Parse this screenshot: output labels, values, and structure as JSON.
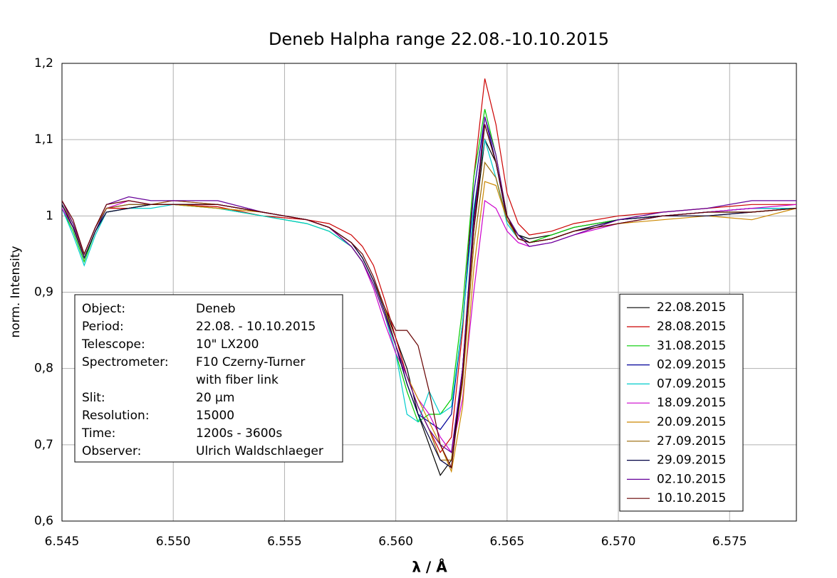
{
  "chart_data": {
    "type": "line",
    "title": "Deneb Halpha range 22.08.-10.10.2015",
    "x_label": "λ / Å",
    "y_label": "norm. Intensity",
    "xlim": [
      6.545,
      6.578
    ],
    "ylim": [
      0.6,
      1.2
    ],
    "xticks": [
      6.545,
      {
        "value": 6.55,
        "label": "6.550"
      },
      6.555,
      {
        "value": 6.56,
        "label": "6.560"
      },
      6.565,
      {
        "value": 6.57,
        "label": "6.570"
      },
      6.575
    ],
    "yticks": [
      {
        "value": 0.6,
        "label": "0,6"
      },
      {
        "value": 0.7,
        "label": "0,7"
      },
      {
        "value": 0.8,
        "label": "0,8"
      },
      {
        "value": 0.9,
        "label": "0,9"
      },
      1,
      {
        "value": 1.1,
        "label": "1,1"
      },
      {
        "value": 1.2,
        "label": "1,2"
      }
    ],
    "grid": true,
    "legend": "lower right",
    "x": [
      6.545,
      6.5455,
      6.546,
      6.5465,
      6.547,
      6.548,
      6.549,
      6.55,
      6.552,
      6.554,
      6.556,
      6.557,
      6.558,
      6.5585,
      6.559,
      6.5595,
      6.56,
      6.5605,
      6.561,
      6.5615,
      6.562,
      6.5625,
      6.563,
      6.5635,
      6.564,
      6.5645,
      6.565,
      6.5655,
      6.566,
      6.567,
      6.568,
      6.57,
      6.572,
      6.574,
      6.576,
      6.578
    ],
    "series": [
      {
        "name": "22.08.2015",
        "color": "#000000",
        "values": [
          1.015,
          0.99,
          0.945,
          0.98,
          1.005,
          1.01,
          1.015,
          1.015,
          1.015,
          1.005,
          0.995,
          0.985,
          0.965,
          0.945,
          0.915,
          0.88,
          0.84,
          0.8,
          0.74,
          0.7,
          0.66,
          0.68,
          0.8,
          0.98,
          1.1,
          1.07,
          0.995,
          0.975,
          0.97,
          0.975,
          0.985,
          0.995,
          1.0,
          1.005,
          1.01,
          1.01
        ]
      },
      {
        "name": "28.08.2015",
        "color": "#cc0000",
        "values": [
          1.01,
          0.985,
          0.95,
          0.985,
          1.01,
          1.01,
          1.015,
          1.015,
          1.012,
          1.0,
          0.995,
          0.99,
          0.975,
          0.96,
          0.935,
          0.89,
          0.84,
          0.79,
          0.75,
          0.72,
          0.69,
          0.71,
          0.85,
          1.05,
          1.18,
          1.12,
          1.03,
          0.99,
          0.975,
          0.98,
          0.99,
          1.0,
          1.005,
          1.01,
          1.015,
          1.015
        ]
      },
      {
        "name": "31.08.2015",
        "color": "#00cc00",
        "values": [
          1.01,
          0.98,
          0.94,
          0.98,
          1.005,
          1.01,
          1.015,
          1.015,
          1.01,
          1.0,
          0.99,
          0.98,
          0.96,
          0.94,
          0.91,
          0.87,
          0.82,
          0.77,
          0.73,
          0.74,
          0.74,
          0.76,
          0.88,
          1.05,
          1.14,
          1.08,
          1.0,
          0.975,
          0.965,
          0.975,
          0.985,
          0.995,
          1.0,
          1.005,
          1.005,
          1.01
        ]
      },
      {
        "name": "02.09.2015",
        "color": "#000099",
        "values": [
          1.015,
          0.985,
          0.945,
          0.98,
          1.01,
          1.015,
          1.015,
          1.015,
          1.015,
          1.005,
          0.995,
          0.985,
          0.965,
          0.945,
          0.915,
          0.88,
          0.83,
          0.78,
          0.74,
          0.73,
          0.72,
          0.74,
          0.86,
          1.03,
          1.13,
          1.07,
          0.995,
          0.97,
          0.965,
          0.97,
          0.98,
          0.995,
          1.0,
          1.005,
          1.01,
          1.01
        ]
      },
      {
        "name": "07.09.2015",
        "color": "#00cccc",
        "values": [
          1.01,
          0.975,
          0.935,
          0.975,
          1.005,
          1.01,
          1.01,
          1.015,
          1.01,
          1.0,
          0.99,
          0.98,
          0.96,
          0.94,
          0.91,
          0.87,
          0.82,
          0.74,
          0.73,
          0.77,
          0.74,
          0.75,
          0.86,
          1.01,
          1.1,
          1.05,
          0.99,
          0.97,
          0.965,
          0.97,
          0.98,
          0.99,
          1.0,
          1.005,
          1.01,
          1.01
        ]
      },
      {
        "name": "18.09.2015",
        "color": "#cc00cc",
        "values": [
          1.01,
          0.985,
          0.95,
          0.985,
          1.01,
          1.02,
          1.015,
          1.02,
          1.015,
          1.005,
          0.995,
          0.985,
          0.96,
          0.94,
          0.905,
          0.86,
          0.82,
          0.79,
          0.76,
          0.74,
          0.71,
          0.69,
          0.76,
          0.9,
          1.02,
          1.01,
          0.98,
          0.965,
          0.96,
          0.965,
          0.975,
          0.99,
          1.0,
          1.005,
          1.01,
          1.015
        ]
      },
      {
        "name": "20.09.2015",
        "color": "#cc8800",
        "values": [
          1.015,
          0.99,
          0.945,
          0.98,
          1.005,
          1.01,
          1.015,
          1.015,
          1.01,
          1.005,
          0.995,
          0.985,
          0.965,
          0.945,
          0.915,
          0.88,
          0.83,
          0.79,
          0.76,
          0.73,
          0.7,
          0.665,
          0.75,
          0.93,
          1.045,
          1.04,
          0.995,
          0.97,
          0.965,
          0.97,
          0.98,
          0.99,
          0.995,
          1.0,
          0.995,
          1.01
        ]
      },
      {
        "name": "27.09.2015",
        "color": "#996600",
        "values": [
          1.02,
          0.99,
          0.95,
          0.985,
          1.01,
          1.015,
          1.015,
          1.02,
          1.015,
          1.005,
          0.995,
          0.985,
          0.96,
          0.94,
          0.91,
          0.87,
          0.83,
          0.79,
          0.75,
          0.72,
          0.68,
          0.68,
          0.78,
          0.96,
          1.07,
          1.05,
          0.995,
          0.97,
          0.965,
          0.97,
          0.98,
          0.995,
          1.0,
          1.0,
          1.005,
          1.01
        ]
      },
      {
        "name": "29.09.2015",
        "color": "#000044",
        "values": [
          1.015,
          0.985,
          0.945,
          0.98,
          1.005,
          1.01,
          1.015,
          1.015,
          1.015,
          1.005,
          0.995,
          0.985,
          0.965,
          0.945,
          0.915,
          0.875,
          0.83,
          0.78,
          0.74,
          0.71,
          0.68,
          0.67,
          0.8,
          1.0,
          1.12,
          1.07,
          1.0,
          0.975,
          0.965,
          0.97,
          0.98,
          0.995,
          1.0,
          1.0,
          1.005,
          1.01
        ]
      },
      {
        "name": "02.10.2015",
        "color": "#660099",
        "values": [
          1.02,
          0.99,
          0.95,
          0.985,
          1.015,
          1.025,
          1.02,
          1.02,
          1.02,
          1.005,
          0.995,
          0.985,
          0.96,
          0.94,
          0.91,
          0.87,
          0.83,
          0.79,
          0.75,
          0.72,
          0.7,
          0.69,
          0.8,
          0.99,
          1.13,
          1.08,
          1.0,
          0.975,
          0.96,
          0.965,
          0.975,
          0.995,
          1.005,
          1.01,
          1.02,
          1.02
        ]
      },
      {
        "name": "10.10.2015",
        "color": "#660000",
        "values": [
          1.02,
          0.995,
          0.95,
          0.985,
          1.015,
          1.02,
          1.015,
          1.015,
          1.015,
          1.005,
          0.995,
          0.985,
          0.965,
          0.95,
          0.92,
          0.88,
          0.85,
          0.85,
          0.83,
          0.77,
          0.7,
          0.67,
          0.79,
          0.98,
          1.12,
          1.07,
          1.0,
          0.97,
          0.965,
          0.97,
          0.98,
          0.99,
          1.0,
          1.005,
          1.005,
          1.01
        ]
      }
    ],
    "info_box": {
      "rows": [
        {
          "label": "Object:",
          "value": [
            "Deneb"
          ]
        },
        {
          "label": "Period:",
          "value": [
            "22.08. - 10.10.2015"
          ]
        },
        {
          "label": "Telescope:",
          "value": [
            "10\" LX200"
          ]
        },
        {
          "label": "Spectrometer:",
          "value": [
            "F10 Czerny-Turner",
            "with fiber link"
          ]
        },
        {
          "label": "Slit:",
          "value": [
            "20 µm"
          ]
        },
        {
          "label": "Resolution:",
          "value": [
            "15000"
          ]
        },
        {
          "label": "Time:",
          "value": [
            "1200s - 3600s"
          ]
        },
        {
          "label": "Observer:",
          "value": [
            "Ulrich Waldschlaeger"
          ]
        }
      ]
    }
  }
}
